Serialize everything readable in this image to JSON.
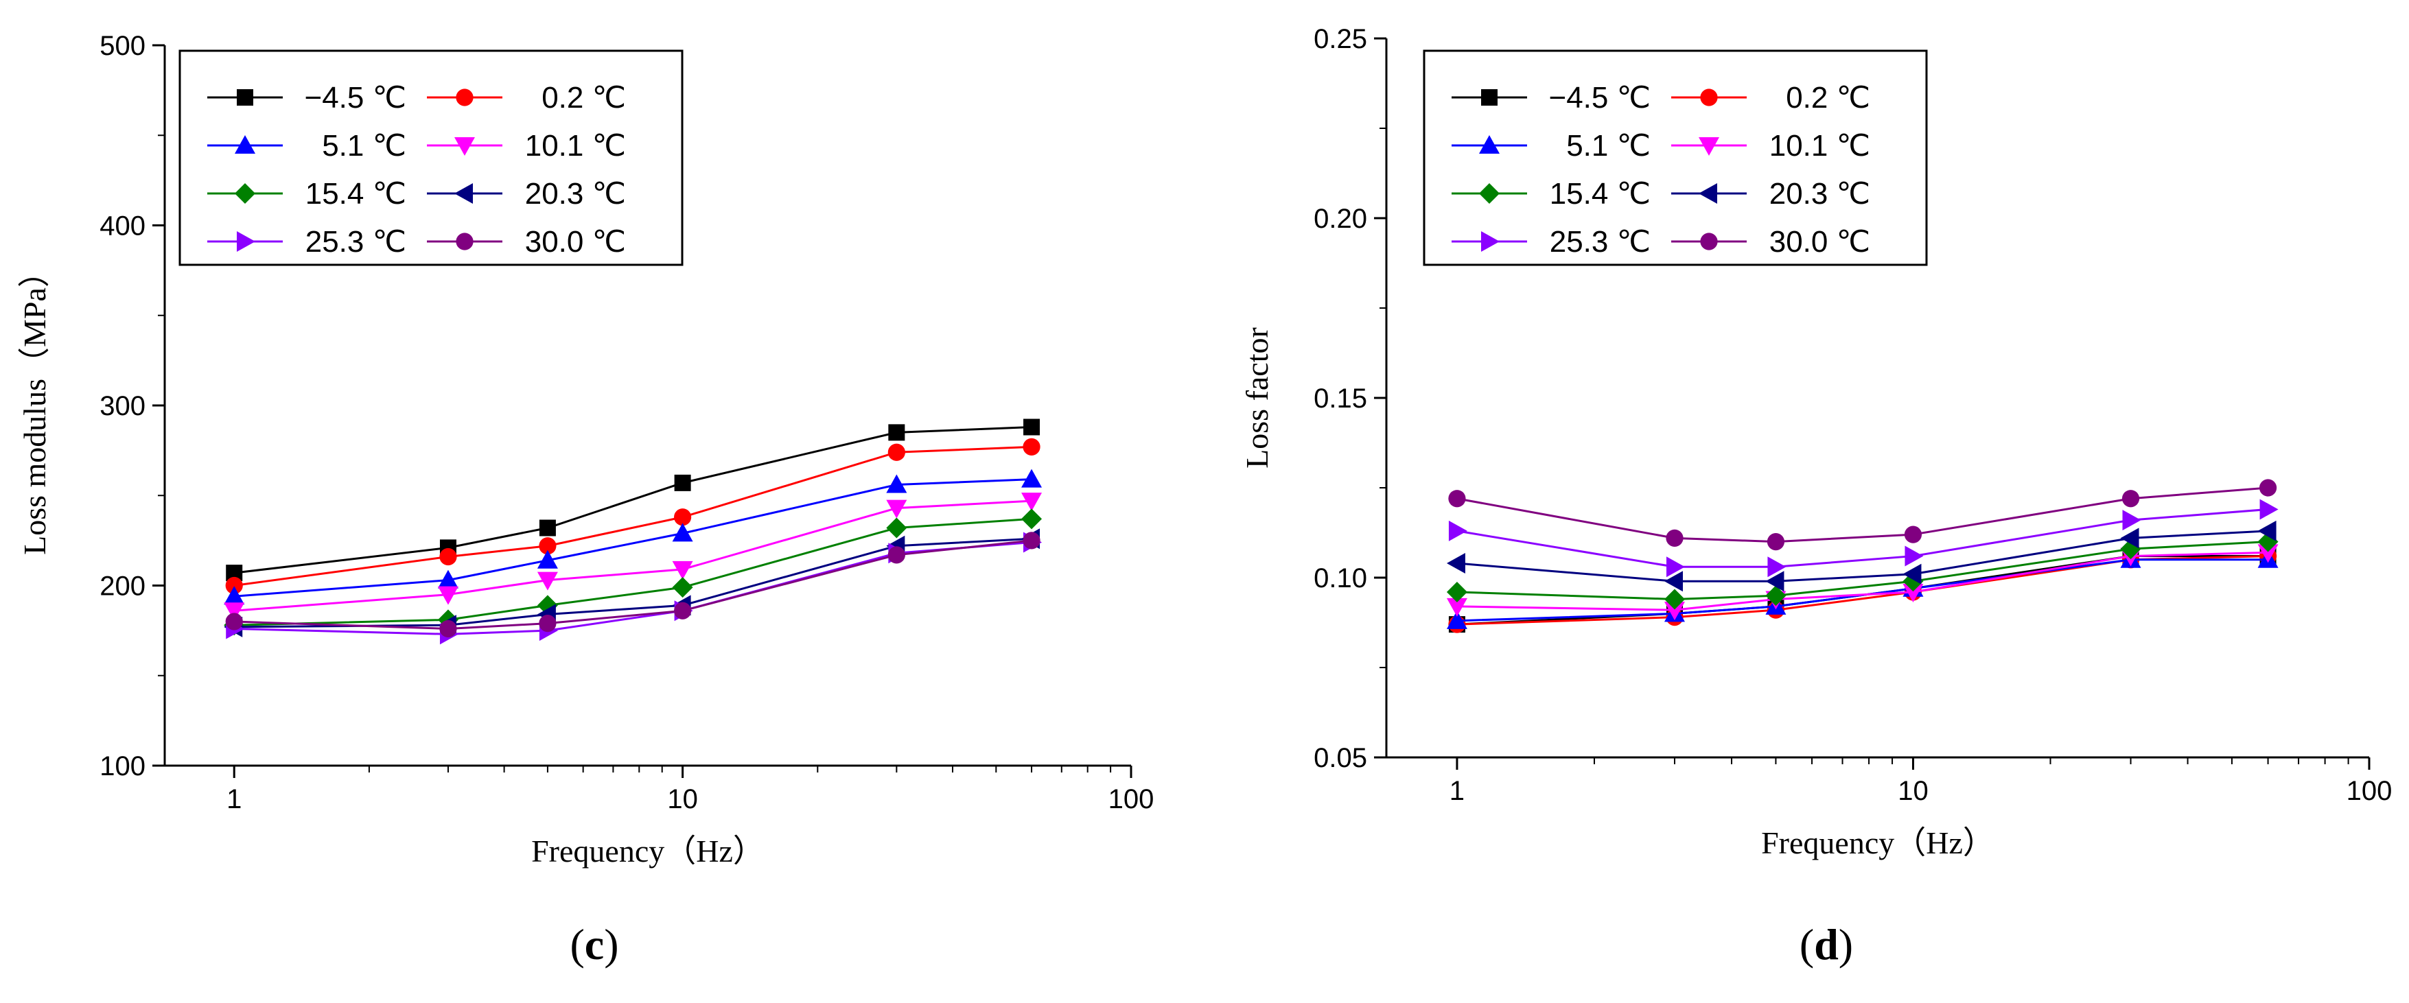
{
  "chart_data": [
    {
      "type": "line",
      "panel": "c",
      "title": "",
      "xlabel": "Frequency（Hz）",
      "ylabel": "Loss modulus（MPa）",
      "xscale": "log",
      "xlim": [
        0.7,
        100
      ],
      "ylim": [
        100,
        500
      ],
      "xticks": [
        "1",
        "10",
        "100"
      ],
      "yticks": [
        "100",
        "200",
        "300",
        "400",
        "500"
      ],
      "x": [
        1,
        3,
        5,
        10,
        30,
        60
      ],
      "legend_position": "top-left",
      "series": [
        {
          "name": "−4.5 ℃",
          "color": "#000000",
          "marker": "square",
          "values": [
            207,
            221,
            232,
            257,
            285,
            288
          ]
        },
        {
          "name": "0.2 ℃",
          "color": "#ff0000",
          "marker": "circle",
          "values": [
            200,
            216,
            222,
            238,
            274,
            277
          ]
        },
        {
          "name": "5.1 ℃",
          "color": "#0000ff",
          "marker": "triangle-up",
          "values": [
            194,
            203,
            214,
            229,
            256,
            259
          ]
        },
        {
          "name": "10.1 ℃",
          "color": "#ff00ff",
          "marker": "triangle-down",
          "values": [
            186,
            195,
            203,
            209,
            243,
            247
          ]
        },
        {
          "name": "15.4 ℃",
          "color": "#008000",
          "marker": "diamond",
          "values": [
            178,
            181,
            189,
            199,
            232,
            237
          ]
        },
        {
          "name": "20.3 ℃",
          "color": "#000080",
          "marker": "triangle-left",
          "values": [
            177,
            178,
            184,
            189,
            222,
            226
          ]
        },
        {
          "name": "25.3 ℃",
          "color": "#8b00ff",
          "marker": "triangle-right",
          "values": [
            176,
            173,
            175,
            186,
            218,
            224
          ]
        },
        {
          "name": "30.0 ℃",
          "color": "#800080",
          "marker": "circle",
          "values": [
            180,
            176,
            179,
            186,
            217,
            225
          ]
        }
      ]
    },
    {
      "type": "line",
      "panel": "d",
      "title": "",
      "xlabel": "Frequency（Hz）",
      "ylabel": "Loss factor",
      "xscale": "log",
      "xlim": [
        0.7,
        100
      ],
      "ylim": [
        0.05,
        0.25
      ],
      "xticks": [
        "1",
        "10",
        "100"
      ],
      "yticks": [
        "0.05",
        "0.10",
        "0.15",
        "0.20",
        "0.25"
      ],
      "x": [
        1,
        3,
        5,
        10,
        30,
        60
      ],
      "legend_position": "top-left",
      "series": [
        {
          "name": "−4.5 ℃",
          "color": "#000000",
          "marker": "square",
          "values": [
            0.087,
            0.09,
            0.092,
            0.097,
            0.106,
            0.106
          ]
        },
        {
          "name": "0.2 ℃",
          "color": "#ff0000",
          "marker": "circle",
          "values": [
            0.087,
            0.089,
            0.091,
            0.096,
            0.105,
            0.106
          ]
        },
        {
          "name": "5.1 ℃",
          "color": "#0000ff",
          "marker": "triangle-up",
          "values": [
            0.088,
            0.09,
            0.092,
            0.097,
            0.105,
            0.105
          ]
        },
        {
          "name": "10.1 ℃",
          "color": "#ff00ff",
          "marker": "triangle-down",
          "values": [
            0.092,
            0.091,
            0.094,
            0.096,
            0.106,
            0.107
          ]
        },
        {
          "name": "15.4 ℃",
          "color": "#008000",
          "marker": "diamond",
          "values": [
            0.096,
            0.094,
            0.095,
            0.099,
            0.108,
            0.11
          ]
        },
        {
          "name": "20.3 ℃",
          "color": "#000080",
          "marker": "triangle-left",
          "values": [
            0.104,
            0.099,
            0.099,
            0.101,
            0.111,
            0.113
          ]
        },
        {
          "name": "25.3 ℃",
          "color": "#8b00ff",
          "marker": "triangle-right",
          "values": [
            0.113,
            0.103,
            0.103,
            0.106,
            0.116,
            0.119
          ]
        },
        {
          "name": "30.0 ℃",
          "color": "#800080",
          "marker": "circle",
          "values": [
            0.122,
            0.111,
            0.11,
            0.112,
            0.122,
            0.125
          ]
        }
      ]
    }
  ],
  "panel_labels": {
    "c": "c",
    "d": "d"
  }
}
